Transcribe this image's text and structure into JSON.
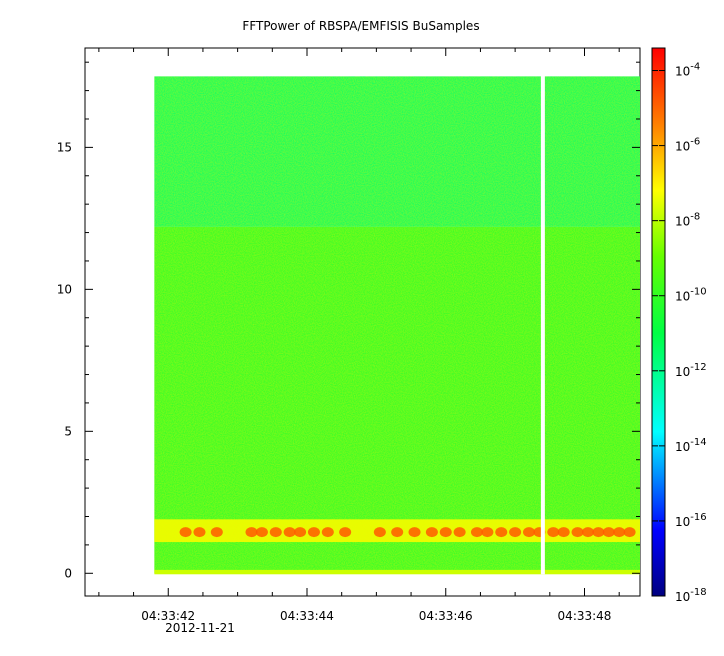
{
  "chart_data": {
    "type": "heatmap",
    "title": "FFTPower of RBSPA/EMFISIS  BuSamples",
    "xlabel": "",
    "ylabel": "",
    "x_date": "2012-11-21",
    "x_ticks": [
      "04:33:42",
      "04:33:44",
      "04:33:46",
      "04:33:48"
    ],
    "x_tick_values_s": [
      42,
      44,
      46,
      48
    ],
    "x_range_s": [
      40.8,
      48.8
    ],
    "x_data_range_s": [
      41.8,
      48.8
    ],
    "gap_s": 47.4,
    "y_ticks": [
      0,
      5,
      10,
      15
    ],
    "ylim": [
      -0.8,
      18.5
    ],
    "y_data_range": [
      0,
      17.5
    ],
    "colorbar": {
      "scale": "log",
      "range_exp": [
        -18,
        -3.4
      ],
      "ticks": [
        "10",
        "10",
        "10",
        "10",
        "10",
        "10",
        "10",
        "10"
      ],
      "tick_exponents": [
        "-4",
        "-6",
        "-8",
        "-10",
        "-12",
        "-14",
        "-16",
        "-18"
      ],
      "tick_exp_values": [
        -4,
        -6,
        -8,
        -10,
        -12,
        -14,
        -16,
        -18
      ],
      "colors": [
        "#000080",
        "#0000ff",
        "#00ffff",
        "#00ff00",
        "#ffff00",
        "#ff8000",
        "#ff0000"
      ]
    },
    "bands": [
      {
        "y": [
          12.2,
          17.5
        ],
        "level_exp": -11.5
      },
      {
        "y": [
          0,
          12.2
        ],
        "level_exp": -10.3
      },
      {
        "y": [
          1.1,
          1.9
        ],
        "level_exp": -7.5
      }
    ]
  }
}
